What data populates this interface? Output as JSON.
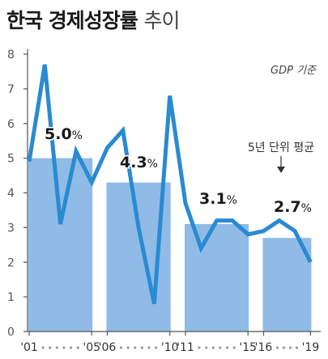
{
  "title": {
    "bold": "한국 경제성장률",
    "light": "추이"
  },
  "chart_data": {
    "type": "bar+line",
    "title": "한국 경제성장률 추이",
    "unit_note": "GDP 기준",
    "annotation": "5년 단위 평균",
    "ylim": [
      0,
      8
    ],
    "yticks": [
      "0",
      "1",
      "2",
      "3",
      "4",
      "5",
      "6",
      "7",
      "8"
    ],
    "x_labels": [
      {
        "year": 2001,
        "text": "'01"
      },
      {
        "year": 2005,
        "text": "'05"
      },
      {
        "year": 2006,
        "text": "'06"
      },
      {
        "year": 2010,
        "text": "'10"
      },
      {
        "year": 2011,
        "text": "'11"
      },
      {
        "year": 2015,
        "text": "'15"
      },
      {
        "year": 2016,
        "text": "'16"
      },
      {
        "year": 2019,
        "text": "'19"
      }
    ],
    "bars": [
      {
        "start": 2001,
        "end": 2005,
        "value": 5.0,
        "label_num": "5.0",
        "label_unit": "%"
      },
      {
        "start": 2006,
        "end": 2010,
        "value": 4.3,
        "label_num": "4.3",
        "label_unit": "%"
      },
      {
        "start": 2011,
        "end": 2015,
        "value": 3.1,
        "label_num": "3.1",
        "label_unit": "%"
      },
      {
        "start": 2016,
        "end": 2019,
        "value": 2.7,
        "label_num": "2.7",
        "label_unit": "%"
      }
    ],
    "line": {
      "years": [
        2001,
        2002,
        2003,
        2004,
        2005,
        2006,
        2007,
        2008,
        2009,
        2010,
        2011,
        2012,
        2013,
        2014,
        2015,
        2016,
        2017,
        2018,
        2019
      ],
      "values": [
        4.9,
        7.7,
        3.1,
        5.2,
        4.3,
        5.3,
        5.8,
        3.0,
        0.8,
        6.8,
        3.7,
        2.4,
        3.2,
        3.2,
        2.8,
        2.9,
        3.2,
        2.9,
        2.0
      ]
    },
    "colors": {
      "bar": "#8fbbe6",
      "line": "#2a8ad2",
      "axis": "#555555",
      "text": "#1a1a1a"
    }
  }
}
